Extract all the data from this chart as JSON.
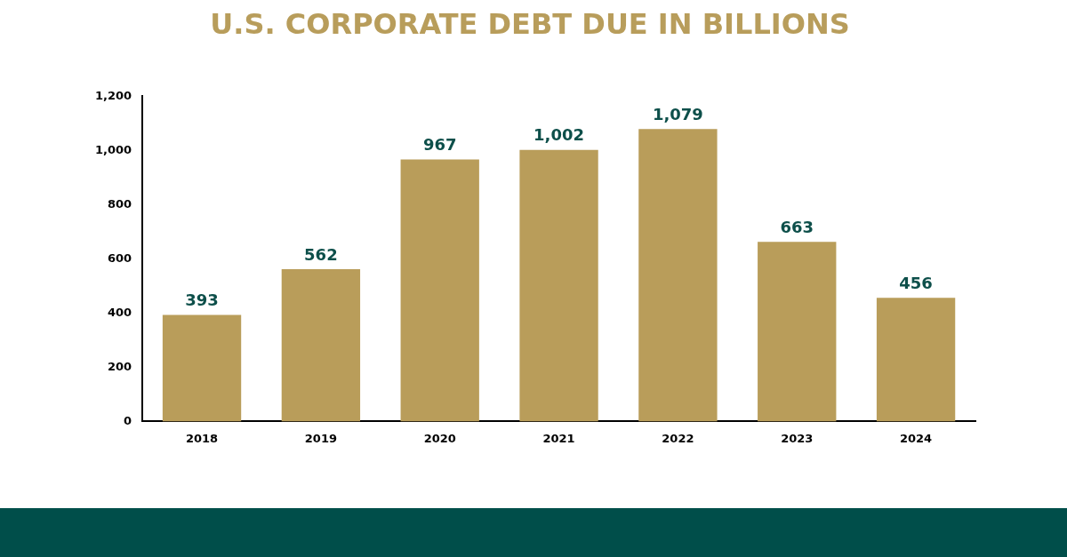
{
  "chart_data": {
    "type": "bar",
    "title": "U.S. CORPORATE DEBT DUE IN BILLIONS",
    "categories": [
      "2018",
      "2019",
      "2020",
      "2021",
      "2022",
      "2023",
      "2024"
    ],
    "values": [
      393,
      562,
      967,
      1002,
      1079,
      663,
      456
    ],
    "value_labels": [
      "393",
      "562",
      "967",
      "1,002",
      "1,079",
      "663",
      "456"
    ],
    "color": "#b99d5a",
    "ylim": [
      0,
      1200
    ],
    "yticks": [
      0,
      200,
      400,
      600,
      800,
      {
        "value": 1000,
        "label": "1,000"
      },
      {
        "value": 1200,
        "label": "1,200"
      }
    ],
    "grid": false,
    "legend": false
  }
}
